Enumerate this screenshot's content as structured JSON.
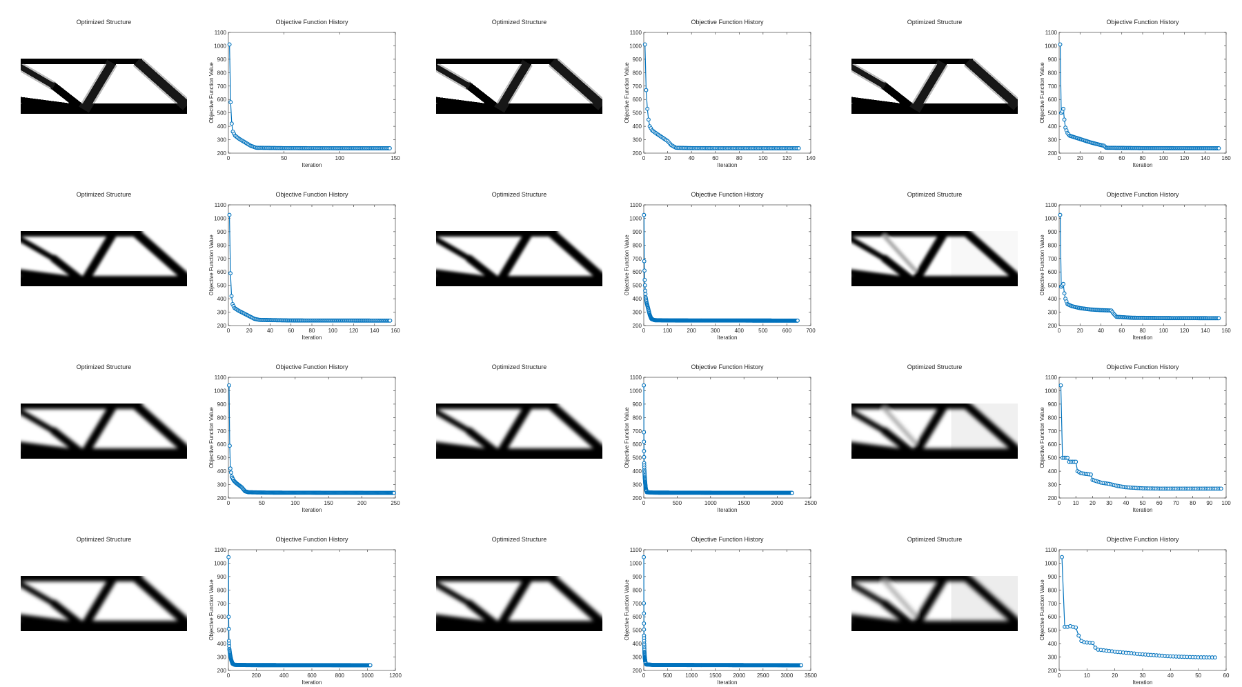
{
  "figure": {
    "structure_title": "Optimized Structure",
    "history_title": "Objective Function History",
    "xlabel": "Iteration",
    "ylabel": "Objective Function Value"
  },
  "panels": [
    {
      "row": 0,
      "col": 0,
      "structure": {
        "style": "pixelated",
        "fade": 0,
        "blur": 0
      },
      "chart_data": {
        "type": "line",
        "title": "Objective Function History",
        "xlabel": "Iteration",
        "ylabel": "Objective Function Value",
        "xlim": [
          0,
          150
        ],
        "ylim": [
          200,
          1100
        ],
        "xticks": [
          0,
          50,
          100,
          150
        ],
        "yticks": [
          200,
          300,
          400,
          500,
          600,
          700,
          800,
          900,
          1000,
          1100
        ],
        "n_iter": 145,
        "key_points": [
          [
            1,
            1010
          ],
          [
            2,
            580
          ],
          [
            3,
            420
          ],
          [
            4,
            360
          ],
          [
            6,
            330
          ],
          [
            10,
            305
          ],
          [
            15,
            280
          ],
          [
            20,
            255
          ],
          [
            25,
            240
          ],
          [
            50,
            237
          ],
          [
            100,
            236
          ],
          [
            145,
            236
          ]
        ],
        "markers_until": 145,
        "color": "#0072BD"
      }
    },
    {
      "row": 0,
      "col": 1,
      "structure": {
        "style": "pixelated",
        "fade": 0,
        "blur": 0
      },
      "chart_data": {
        "type": "line",
        "title": "Objective Function History",
        "xlabel": "Iteration",
        "ylabel": "Objective Function Value",
        "xlim": [
          0,
          140
        ],
        "ylim": [
          200,
          1100
        ],
        "xticks": [
          0,
          20,
          40,
          60,
          80,
          100,
          120,
          140
        ],
        "yticks": [
          200,
          300,
          400,
          500,
          600,
          700,
          800,
          900,
          1000,
          1100
        ],
        "n_iter": 130,
        "key_points": [
          [
            1,
            1010
          ],
          [
            2,
            670
          ],
          [
            3,
            530
          ],
          [
            4,
            450
          ],
          [
            5,
            400
          ],
          [
            7,
            370
          ],
          [
            10,
            350
          ],
          [
            15,
            320
          ],
          [
            20,
            290
          ],
          [
            23,
            260
          ],
          [
            27,
            240
          ],
          [
            40,
            237
          ],
          [
            80,
            236
          ],
          [
            130,
            236
          ]
        ],
        "markers_until": 130,
        "color": "#0072BD"
      }
    },
    {
      "row": 0,
      "col": 2,
      "structure": {
        "style": "pixelated",
        "fade": 0,
        "blur": 0
      },
      "chart_data": {
        "type": "line",
        "title": "Objective Function History",
        "xlabel": "Iteration",
        "ylabel": "Objective Function Value",
        "xlim": [
          0,
          160
        ],
        "ylim": [
          200,
          1100
        ],
        "xticks": [
          0,
          20,
          40,
          60,
          80,
          100,
          120,
          140,
          160
        ],
        "yticks": [
          200,
          300,
          400,
          500,
          600,
          700,
          800,
          900,
          1000,
          1100
        ],
        "n_iter": 153,
        "key_points": [
          [
            1,
            1010
          ],
          [
            2,
            500
          ],
          [
            3,
            510
          ],
          [
            4,
            530
          ],
          [
            5,
            450
          ],
          [
            6,
            390
          ],
          [
            8,
            350
          ],
          [
            10,
            330
          ],
          [
            20,
            305
          ],
          [
            30,
            280
          ],
          [
            40,
            260
          ],
          [
            43,
            255
          ],
          [
            45,
            240
          ],
          [
            80,
            237
          ],
          [
            153,
            236
          ]
        ],
        "markers_until": 153,
        "color": "#0072BD"
      }
    },
    {
      "row": 1,
      "col": 0,
      "structure": {
        "style": "smooth",
        "fade": 0,
        "blur": 2.2
      },
      "chart_data": {
        "type": "line",
        "title": "Objective Function History",
        "xlabel": "Iteration",
        "ylabel": "Objective Function Value",
        "xlim": [
          0,
          160
        ],
        "ylim": [
          200,
          1100
        ],
        "xticks": [
          0,
          20,
          40,
          60,
          80,
          100,
          120,
          140,
          160
        ],
        "yticks": [
          200,
          300,
          400,
          500,
          600,
          700,
          800,
          900,
          1000,
          1100
        ],
        "n_iter": 155,
        "key_points": [
          [
            1,
            1025
          ],
          [
            2,
            590
          ],
          [
            3,
            420
          ],
          [
            4,
            360
          ],
          [
            6,
            330
          ],
          [
            10,
            310
          ],
          [
            15,
            290
          ],
          [
            20,
            270
          ],
          [
            25,
            250
          ],
          [
            30,
            242
          ],
          [
            60,
            238
          ],
          [
            155,
            237
          ]
        ],
        "markers_until": 155,
        "color": "#0072BD"
      }
    },
    {
      "row": 1,
      "col": 1,
      "structure": {
        "style": "smooth",
        "fade": 0,
        "blur": 2.2
      },
      "chart_data": {
        "type": "line",
        "title": "Objective Function History",
        "xlabel": "Iteration",
        "ylabel": "Objective Function Value",
        "xlim": [
          0,
          700
        ],
        "ylim": [
          200,
          1100
        ],
        "xticks": [
          0,
          100,
          200,
          300,
          400,
          500,
          600,
          700
        ],
        "yticks": [
          200,
          300,
          400,
          500,
          600,
          700,
          800,
          900,
          1000,
          1100
        ],
        "n_iter": 645,
        "key_points": [
          [
            1,
            1025
          ],
          [
            2,
            680
          ],
          [
            4,
            540
          ],
          [
            6,
            460
          ],
          [
            8,
            410
          ],
          [
            12,
            370
          ],
          [
            18,
            330
          ],
          [
            25,
            280
          ],
          [
            32,
            250
          ],
          [
            45,
            240
          ],
          [
            120,
            238
          ],
          [
            645,
            237
          ]
        ],
        "markers_until": 645,
        "color": "#0072BD"
      }
    },
    {
      "row": 1,
      "col": 2,
      "structure": {
        "style": "smooth",
        "fade": 0.12,
        "blur": 2.2
      },
      "chart_data": {
        "type": "line",
        "title": "Objective Function History",
        "xlabel": "Iteration",
        "ylabel": "Objective Function Value",
        "xlim": [
          0,
          160
        ],
        "ylim": [
          200,
          1100
        ],
        "xticks": [
          0,
          20,
          40,
          60,
          80,
          100,
          120,
          140,
          160
        ],
        "yticks": [
          200,
          300,
          400,
          500,
          600,
          700,
          800,
          900,
          1000,
          1100
        ],
        "n_iter": 153,
        "key_points": [
          [
            1,
            1025
          ],
          [
            2,
            490
          ],
          [
            3,
            500
          ],
          [
            4,
            510
          ],
          [
            5,
            440
          ],
          [
            6,
            400
          ],
          [
            8,
            360
          ],
          [
            12,
            345
          ],
          [
            20,
            330
          ],
          [
            30,
            320
          ],
          [
            40,
            315
          ],
          [
            50,
            312
          ],
          [
            52,
            290
          ],
          [
            55,
            265
          ],
          [
            70,
            258
          ],
          [
            100,
            256
          ],
          [
            153,
            255
          ]
        ],
        "markers_until": 153,
        "color": "#0072BD"
      }
    },
    {
      "row": 2,
      "col": 0,
      "structure": {
        "style": "smooth",
        "fade": 0,
        "blur": 2.6
      },
      "chart_data": {
        "type": "line",
        "title": "Objective Function History",
        "xlabel": "Iteration",
        "ylabel": "Objective Function Value",
        "xlim": [
          0,
          250
        ],
        "ylim": [
          200,
          1100
        ],
        "xticks": [
          0,
          50,
          100,
          150,
          200,
          250
        ],
        "yticks": [
          200,
          300,
          400,
          500,
          600,
          700,
          800,
          900,
          1000,
          1100
        ],
        "n_iter": 248,
        "key_points": [
          [
            1,
            1040
          ],
          [
            2,
            590
          ],
          [
            3,
            420
          ],
          [
            5,
            360
          ],
          [
            8,
            330
          ],
          [
            12,
            310
          ],
          [
            20,
            280
          ],
          [
            25,
            250
          ],
          [
            30,
            243
          ],
          [
            60,
            240
          ],
          [
            248,
            238
          ]
        ],
        "markers_until": 248,
        "color": "#0072BD"
      }
    },
    {
      "row": 2,
      "col": 1,
      "structure": {
        "style": "smooth",
        "fade": 0,
        "blur": 2.6
      },
      "chart_data": {
        "type": "line",
        "title": "Objective Function History",
        "xlabel": "Iteration",
        "ylabel": "Objective Function Value",
        "xlim": [
          0,
          2500
        ],
        "ylim": [
          200,
          1100
        ],
        "xticks": [
          0,
          500,
          1000,
          1500,
          2000,
          2500
        ],
        "yticks": [
          200,
          300,
          400,
          500,
          600,
          700,
          800,
          900,
          1000,
          1100
        ],
        "n_iter": 2220,
        "key_points": [
          [
            1,
            1040
          ],
          [
            2,
            690
          ],
          [
            4,
            550
          ],
          [
            6,
            460
          ],
          [
            9,
            410
          ],
          [
            14,
            360
          ],
          [
            20,
            320
          ],
          [
            30,
            270
          ],
          [
            45,
            243
          ],
          [
            150,
            240
          ],
          [
            2220,
            238
          ]
        ],
        "markers_until": 2220,
        "color": "#0072BD"
      }
    },
    {
      "row": 2,
      "col": 2,
      "structure": {
        "style": "smooth",
        "fade": 0.25,
        "blur": 3
      },
      "chart_data": {
        "type": "line",
        "title": "Objective Function History",
        "xlabel": "Iteration",
        "ylabel": "Objective Function Value",
        "xlim": [
          0,
          100
        ],
        "ylim": [
          200,
          1100
        ],
        "xticks": [
          0,
          10,
          20,
          30,
          40,
          50,
          60,
          70,
          80,
          90,
          100
        ],
        "yticks": [
          200,
          300,
          400,
          500,
          600,
          700,
          800,
          900,
          1000,
          1100
        ],
        "n_iter": 97,
        "key_points": [
          [
            1,
            1040
          ],
          [
            2,
            500
          ],
          [
            5,
            500
          ],
          [
            6,
            470
          ],
          [
            10,
            470
          ],
          [
            11,
            400
          ],
          [
            13,
            385
          ],
          [
            19,
            375
          ],
          [
            20,
            335
          ],
          [
            25,
            315
          ],
          [
            30,
            305
          ],
          [
            35,
            290
          ],
          [
            40,
            280
          ],
          [
            50,
            272
          ],
          [
            60,
            270
          ],
          [
            97,
            270
          ]
        ],
        "markers_until": 97,
        "color": "#0072BD"
      }
    },
    {
      "row": 3,
      "col": 0,
      "structure": {
        "style": "smooth",
        "fade": 0,
        "blur": 2.8
      },
      "chart_data": {
        "type": "line",
        "title": "Objective Function History",
        "xlabel": "Iteration",
        "ylabel": "Objective Function Value",
        "xlim": [
          0,
          1200
        ],
        "ylim": [
          200,
          1100
        ],
        "xticks": [
          0,
          200,
          400,
          600,
          800,
          1000,
          1200
        ],
        "yticks": [
          200,
          300,
          400,
          500,
          600,
          700,
          800,
          900,
          1000,
          1100
        ],
        "n_iter": 1020,
        "key_points": [
          [
            1,
            1045
          ],
          [
            2,
            600
          ],
          [
            4,
            420
          ],
          [
            7,
            360
          ],
          [
            12,
            320
          ],
          [
            20,
            280
          ],
          [
            30,
            250
          ],
          [
            45,
            242
          ],
          [
            150,
            240
          ],
          [
            1020,
            239
          ]
        ],
        "markers_until": 1020,
        "color": "#0072BD"
      }
    },
    {
      "row": 3,
      "col": 1,
      "structure": {
        "style": "smooth",
        "fade": 0,
        "blur": 2.8
      },
      "chart_data": {
        "type": "line",
        "title": "Objective Function History",
        "xlabel": "Iteration",
        "ylabel": "Objective Function Value",
        "xlim": [
          0,
          3500
        ],
        "ylim": [
          200,
          1100
        ],
        "xticks": [
          0,
          500,
          1000,
          1500,
          2000,
          2500,
          3000,
          3500
        ],
        "yticks": [
          200,
          300,
          400,
          500,
          600,
          700,
          800,
          900,
          1000,
          1100
        ],
        "n_iter": 3300,
        "key_points": [
          [
            1,
            1045
          ],
          [
            2,
            700
          ],
          [
            4,
            550
          ],
          [
            6,
            460
          ],
          [
            9,
            400
          ],
          [
            14,
            340
          ],
          [
            20,
            300
          ],
          [
            30,
            270
          ],
          [
            45,
            245
          ],
          [
            200,
            241
          ],
          [
            3300,
            239
          ]
        ],
        "markers_until": 3300,
        "color": "#0072BD"
      }
    },
    {
      "row": 3,
      "col": 2,
      "structure": {
        "style": "smooth",
        "fade": 0.3,
        "blur": 3.2
      },
      "chart_data": {
        "type": "line",
        "title": "Objective Function History",
        "xlabel": "Iteration",
        "ylabel": "Objective Function Value",
        "xlim": [
          0,
          60
        ],
        "ylim": [
          200,
          1100
        ],
        "xticks": [
          0,
          10,
          20,
          30,
          40,
          50,
          60
        ],
        "yticks": [
          200,
          300,
          400,
          500,
          600,
          700,
          800,
          900,
          1000,
          1100
        ],
        "n_iter": 56,
        "key_points": [
          [
            1,
            1045
          ],
          [
            2,
            525
          ],
          [
            3,
            525
          ],
          [
            4,
            530
          ],
          [
            5,
            525
          ],
          [
            6,
            520
          ],
          [
            7,
            460
          ],
          [
            8,
            420
          ],
          [
            9,
            410
          ],
          [
            12,
            405
          ],
          [
            13,
            370
          ],
          [
            14,
            355
          ],
          [
            20,
            340
          ],
          [
            30,
            320
          ],
          [
            40,
            305
          ],
          [
            50,
            298
          ],
          [
            56,
            297
          ]
        ],
        "markers_until": 56,
        "color": "#0072BD"
      }
    }
  ]
}
